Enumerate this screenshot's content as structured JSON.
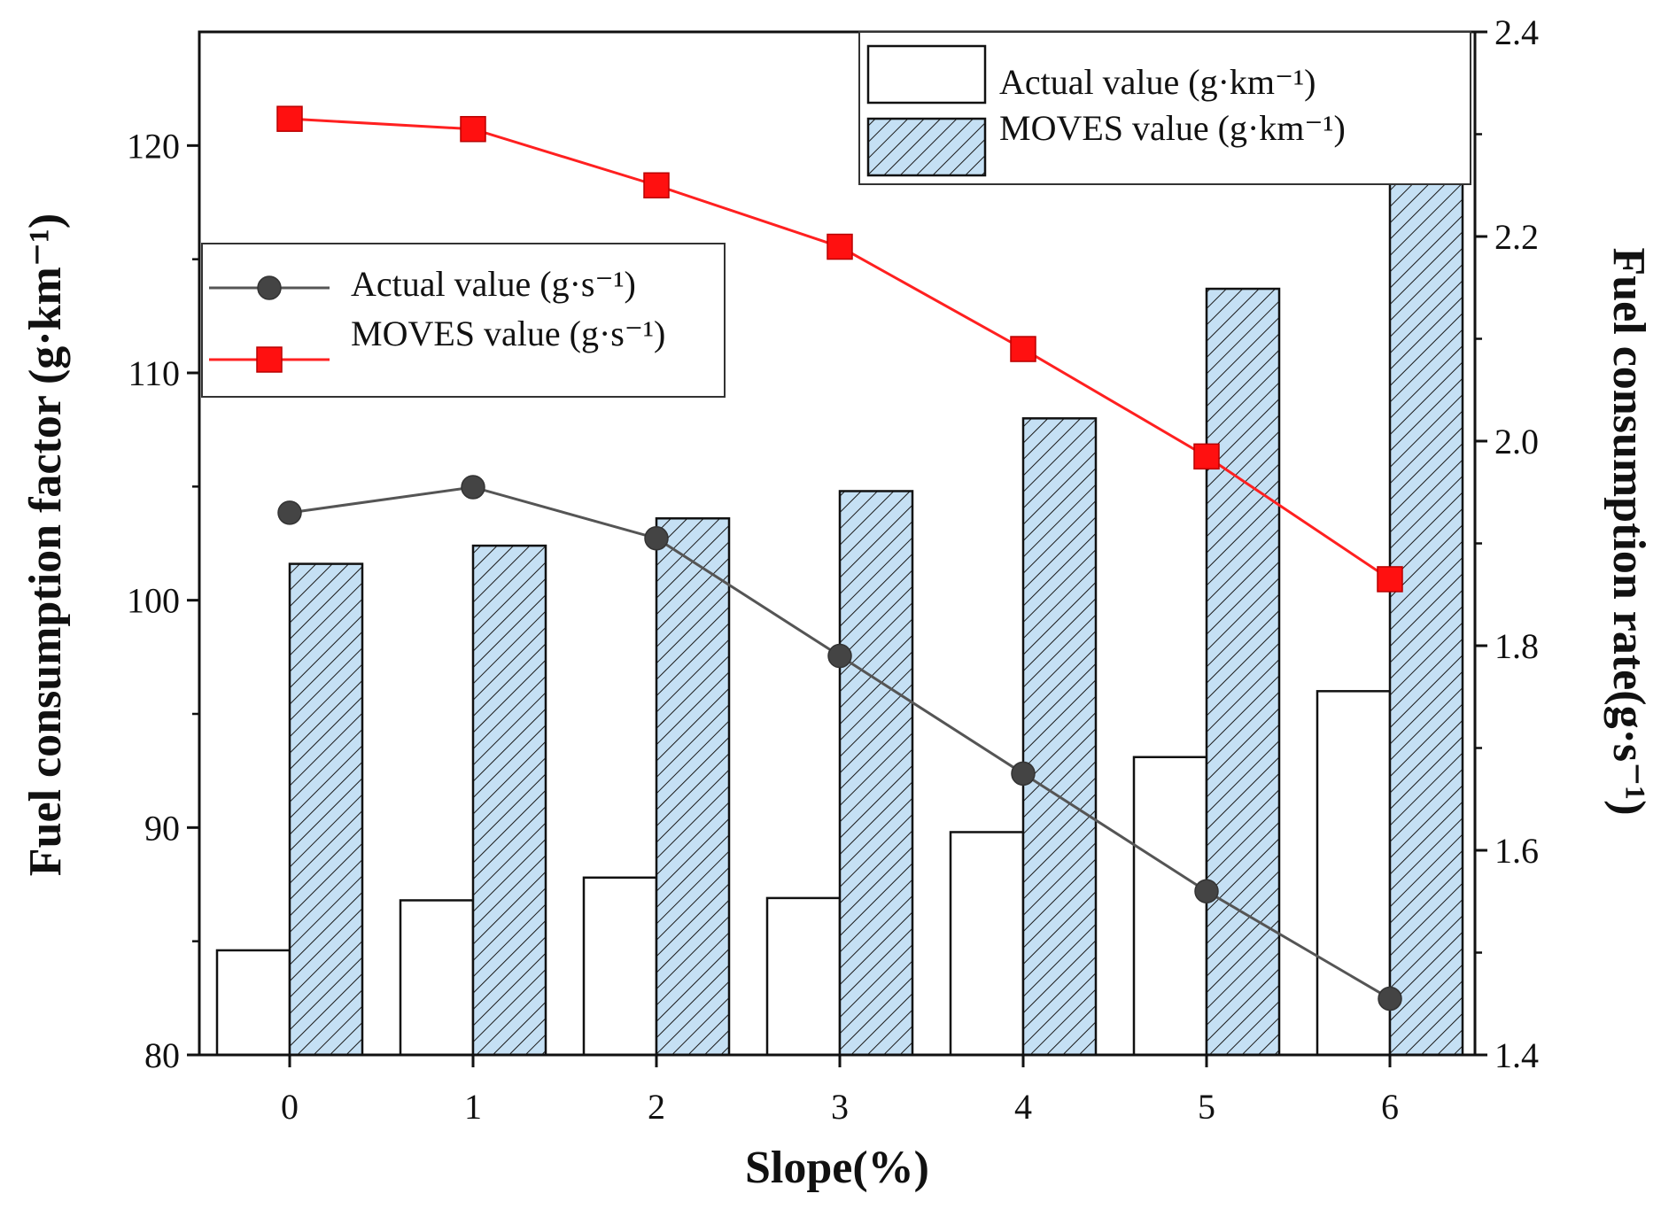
{
  "chart_data": {
    "type": "bar+line",
    "xlabel": "Slope(%)",
    "ylabel_left": "Fuel consumption factor (g·km⁻¹)",
    "ylabel_right": "Fuel consumption rate(g·s⁻¹)",
    "categories": [
      "0",
      "1",
      "2",
      "3",
      "4",
      "5",
      "6"
    ],
    "ylim_left": [
      80,
      125
    ],
    "yticks_left": [
      80,
      90,
      100,
      110,
      120
    ],
    "ylim_right": [
      1.4,
      2.4
    ],
    "yticks_right": [
      "1.4",
      "1.6",
      "1.8",
      "2.0",
      "2.2",
      "2.4"
    ],
    "bar_series": [
      {
        "name": "Actual value (g·km⁻¹)",
        "axis": "left",
        "style": "plain",
        "fill": "#ffffff",
        "values": [
          84.6,
          86.8,
          87.8,
          86.9,
          89.8,
          93.1,
          96.0
        ]
      },
      {
        "name": "MOVES value (g·km⁻¹)",
        "axis": "left",
        "style": "hatched",
        "fill": "#c5e0f4",
        "values": [
          101.6,
          102.4,
          103.6,
          104.8,
          108.0,
          113.7,
          120.4
        ]
      }
    ],
    "line_series": [
      {
        "name": "Actual value (g·s⁻¹)",
        "axis": "right",
        "marker": "circle",
        "color": "#555555",
        "values": [
          1.93,
          1.955,
          1.905,
          1.79,
          1.675,
          1.56,
          1.455
        ]
      },
      {
        "name": "MOVES value (g·s⁻¹)",
        "axis": "right",
        "marker": "square",
        "color": "#ff2020",
        "values": [
          2.315,
          2.305,
          2.25,
          2.19,
          2.09,
          1.985,
          1.865
        ]
      }
    ],
    "legends": {
      "bars": {
        "position": "top-right",
        "entries": [
          "Actual value (g·km⁻¹)",
          "MOVES value (g·km⁻¹)"
        ]
      },
      "lines": {
        "position": "upper-left",
        "entries": [
          "Actual value (g·s⁻¹)",
          "MOVES value (g·s⁻¹)"
        ]
      }
    }
  }
}
